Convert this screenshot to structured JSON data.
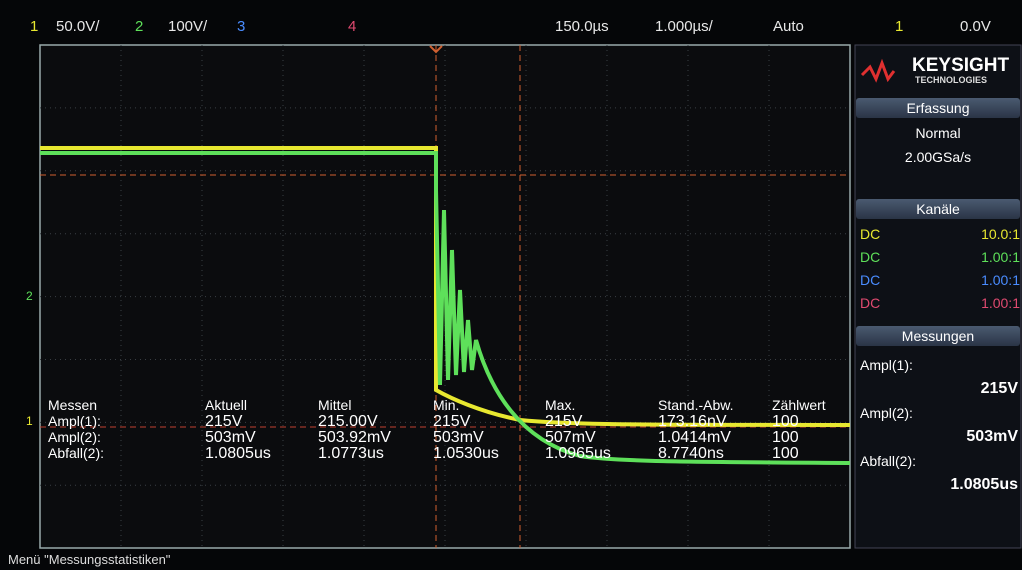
{
  "top_bar": {
    "channels": [
      {
        "number": "1",
        "scale": "50.0V/"
      },
      {
        "number": "2",
        "scale": "100V/"
      },
      {
        "number": "3"
      },
      {
        "number": "4"
      }
    ],
    "delay": "150.0µs",
    "timebase": "1.000µs/",
    "trigger_mode": "Auto",
    "trigger_source": "1",
    "trigger_level": "0.0V"
  },
  "sidebar": {
    "brand": "KEYSIGHT",
    "brand_sub": "TECHNOLOGIES",
    "acquisition": {
      "title": "Erfassung",
      "mode": "Normal",
      "rate": "2.00GSa/s"
    },
    "channels": {
      "title": "Kanäle",
      "rows": [
        [
          "DC",
          "10.0:1"
        ],
        [
          "DC",
          "1.00:1"
        ],
        [
          "DC",
          "1.00:1"
        ],
        [
          "DC",
          "1.00:1"
        ]
      ]
    },
    "measurements": {
      "title": "Messungen",
      "items": [
        {
          "label": "Ampl(1):",
          "value": "215V"
        },
        {
          "label": "Ampl(2):",
          "value": "503mV"
        },
        {
          "label": "Abfall(2):",
          "value": "1.0805us"
        }
      ]
    }
  },
  "stats": {
    "header": [
      "Messen",
      "Aktuell",
      "Mittel",
      "Min.",
      "Max.",
      "Stand.-Abw.",
      "Zählwert"
    ],
    "rows": [
      [
        "Ampl(1):",
        "215V",
        "215.00V",
        "215V",
        "215V",
        "173.16nV",
        "100"
      ],
      [
        "Ampl(2):",
        "503mV",
        "503.92mV",
        "503mV",
        "507mV",
        "1.0414mV",
        "100"
      ],
      [
        "Abfall(2):",
        "1.0805us",
        "1.0773us",
        "1.0530us",
        "1.0965us",
        "8.7740ns",
        "100"
      ]
    ]
  },
  "status": "Menü \"Messungsstatistiken\""
}
